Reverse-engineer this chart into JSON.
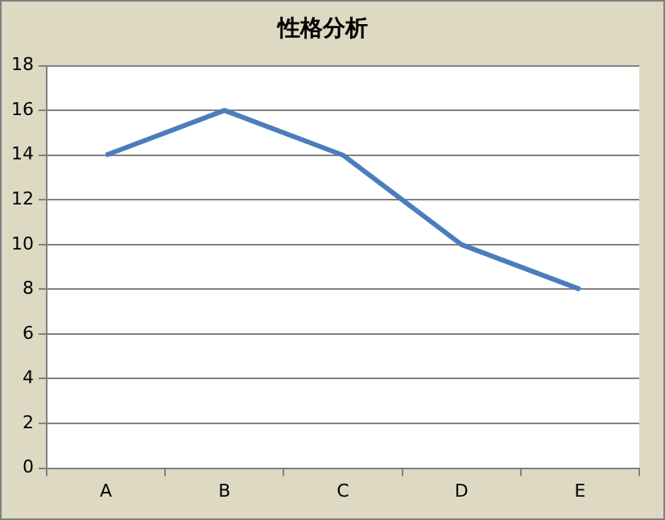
{
  "chart_data": {
    "type": "line",
    "title": "性格分析",
    "categories": [
      "A",
      "B",
      "C",
      "D",
      "E"
    ],
    "series": [
      {
        "color": "#4a7ebb",
        "values": [
          14,
          16,
          14,
          10,
          8
        ]
      }
    ],
    "ylim": [
      0,
      18
    ],
    "yticks": [
      0,
      2,
      4,
      6,
      8,
      10,
      12,
      14,
      16,
      18
    ],
    "grid": "y",
    "legend": false,
    "marker": "none",
    "line_style": "solid"
  }
}
